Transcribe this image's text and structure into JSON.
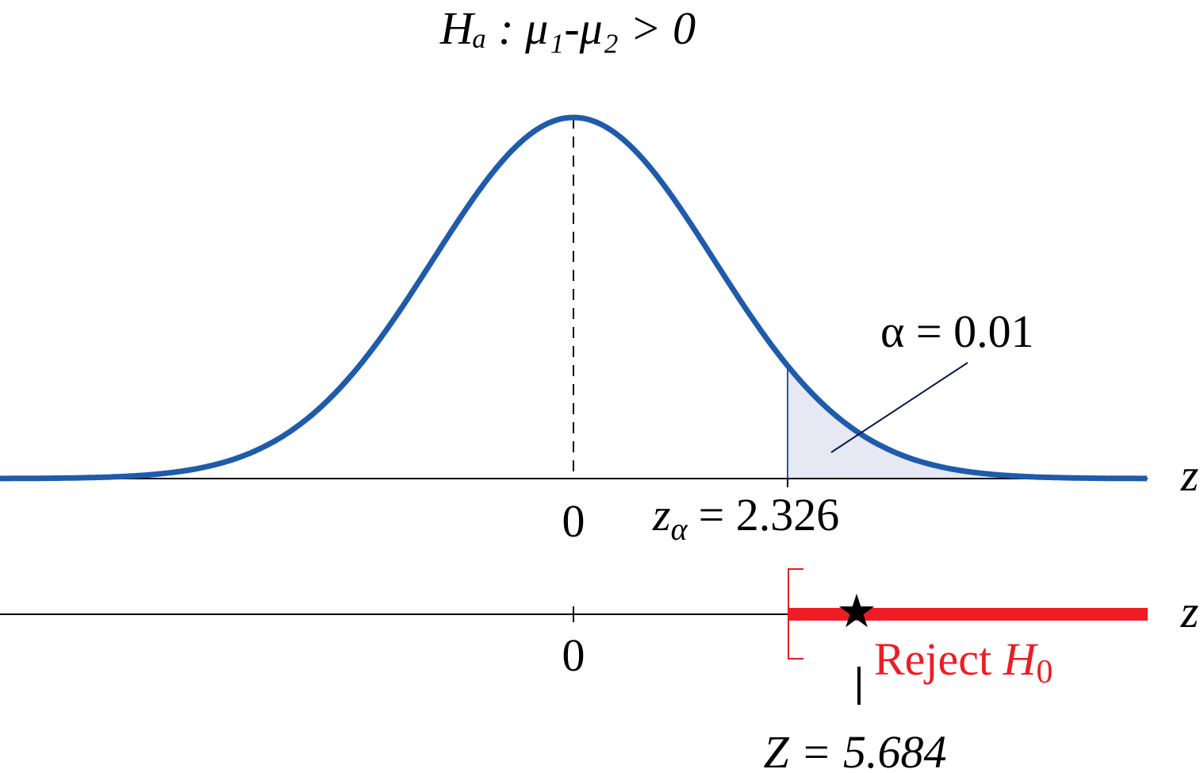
{
  "title": "Hₐ : μ₁-μ₂ > 0",
  "upper_axis": {
    "label": "z",
    "tick": "0"
  },
  "alpha_label": "α = 0.01",
  "critical": {
    "symbol": "z",
    "subscript": "α",
    "text": "= 2.326"
  },
  "lower_axis": {
    "label": "z",
    "tick": "0"
  },
  "reject": {
    "text": "Reject ",
    "symbol": "H",
    "subscript": "0"
  },
  "statistic": "Z = 5.684"
}
